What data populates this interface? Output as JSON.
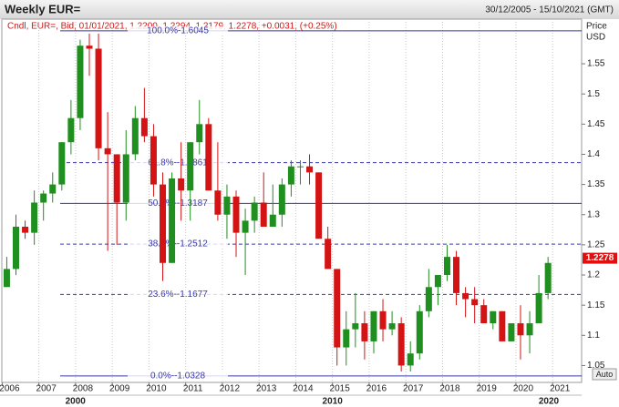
{
  "chart_data": {
    "type": "candlestick",
    "title": "Weekly EUR=",
    "date_range": "30/12/2005 - 15/10/2021 (GMT)",
    "legend_text": "Cndl, EUR=, Bid, 01/01/2021, 1.2200, 1.2294, 1.2179, 1.2278, +0.0031, (+0.25%)",
    "y_label": "Price",
    "y_unit": "USD",
    "auto_button": "Auto",
    "last_price": 1.2278,
    "up_color": "#1f8f1f",
    "down_color": "#d41414",
    "x": [
      2006.125,
      2006.375,
      2006.625,
      2006.875,
      2007.125,
      2007.375,
      2007.625,
      2007.875,
      2008.125,
      2008.375,
      2008.625,
      2008.875,
      2009.125,
      2009.375,
      2009.625,
      2009.875,
      2010.125,
      2010.375,
      2010.625,
      2010.875,
      2011.125,
      2011.375,
      2011.625,
      2011.875,
      2012.125,
      2012.375,
      2012.625,
      2012.875,
      2013.125,
      2013.375,
      2013.625,
      2013.875,
      2014.125,
      2014.375,
      2014.625,
      2014.875,
      2015.125,
      2015.375,
      2015.625,
      2015.875,
      2016.125,
      2016.375,
      2016.625,
      2016.875,
      2017.125,
      2017.375,
      2017.625,
      2017.875,
      2018.125,
      2018.375,
      2018.625,
      2018.875,
      2019.125,
      2019.375,
      2019.625,
      2019.875,
      2020.125,
      2020.375,
      2020.625,
      2020.875
    ],
    "open": [
      1.18,
      1.21,
      1.28,
      1.27,
      1.32,
      1.335,
      1.35,
      1.42,
      1.46,
      1.58,
      1.575,
      1.41,
      1.4,
      1.32,
      1.4,
      1.46,
      1.43,
      1.35,
      1.22,
      1.36,
      1.34,
      1.42,
      1.45,
      1.34,
      1.3,
      1.33,
      1.27,
      1.29,
      1.32,
      1.28,
      1.3,
      1.35,
      1.38,
      1.38,
      1.37,
      1.26,
      1.21,
      1.08,
      1.11,
      1.12,
      1.09,
      1.14,
      1.11,
      1.12,
      1.05,
      1.07,
      1.14,
      1.18,
      1.2,
      1.23,
      1.17,
      1.16,
      1.15,
      1.12,
      1.14,
      1.09,
      1.12,
      1.1,
      1.12,
      1.17
    ],
    "high": [
      1.23,
      1.3,
      1.29,
      1.34,
      1.34,
      1.37,
      1.42,
      1.49,
      1.59,
      1.6,
      1.6,
      1.47,
      1.4,
      1.44,
      1.48,
      1.51,
      1.45,
      1.37,
      1.37,
      1.42,
      1.42,
      1.49,
      1.46,
      1.42,
      1.35,
      1.34,
      1.31,
      1.33,
      1.37,
      1.35,
      1.36,
      1.39,
      1.39,
      1.4,
      1.37,
      1.28,
      1.21,
      1.14,
      1.17,
      1.14,
      1.14,
      1.16,
      1.14,
      1.13,
      1.09,
      1.15,
      1.21,
      1.2,
      1.25,
      1.24,
      1.18,
      1.18,
      1.16,
      1.14,
      1.14,
      1.12,
      1.15,
      1.14,
      1.2,
      1.23
    ],
    "low": [
      1.18,
      1.2,
      1.26,
      1.25,
      1.29,
      1.32,
      1.34,
      1.4,
      1.44,
      1.53,
      1.39,
      1.24,
      1.25,
      1.29,
      1.39,
      1.42,
      1.33,
      1.19,
      1.22,
      1.29,
      1.29,
      1.4,
      1.34,
      1.29,
      1.26,
      1.23,
      1.2,
      1.27,
      1.28,
      1.28,
      1.28,
      1.33,
      1.35,
      1.35,
      1.26,
      1.21,
      1.05,
      1.05,
      1.08,
      1.06,
      1.07,
      1.09,
      1.1,
      1.04,
      1.04,
      1.06,
      1.13,
      1.15,
      1.19,
      1.15,
      1.13,
      1.12,
      1.12,
      1.11,
      1.09,
      1.09,
      1.06,
      1.07,
      1.12,
      1.16
    ],
    "close": [
      1.21,
      1.28,
      1.27,
      1.32,
      1.335,
      1.35,
      1.42,
      1.46,
      1.58,
      1.575,
      1.41,
      1.4,
      1.32,
      1.4,
      1.46,
      1.43,
      1.35,
      1.22,
      1.36,
      1.34,
      1.42,
      1.45,
      1.34,
      1.3,
      1.33,
      1.27,
      1.29,
      1.32,
      1.28,
      1.3,
      1.35,
      1.38,
      1.38,
      1.37,
      1.26,
      1.21,
      1.08,
      1.11,
      1.12,
      1.09,
      1.14,
      1.11,
      1.12,
      1.05,
      1.07,
      1.14,
      1.18,
      1.2,
      1.23,
      1.17,
      1.16,
      1.15,
      1.12,
      1.14,
      1.09,
      1.12,
      1.1,
      1.12,
      1.17,
      1.22
    ],
    "xlim": [
      2005.99,
      2021.79
    ],
    "xticks": [
      2006,
      2007,
      2008,
      2009,
      2010,
      2011,
      2012,
      2013,
      2014,
      2015,
      2016,
      2017,
      2018,
      2019,
      2020,
      2021
    ],
    "decade_labels": [
      "2000",
      "2010",
      "2020"
    ],
    "ylim": [
      1.022,
      1.624
    ],
    "yticks": [
      1.05,
      1.1,
      1.15,
      1.2,
      1.25,
      1.3,
      1.35,
      1.4,
      1.45,
      1.5,
      1.55
    ],
    "grid": "x",
    "fib_color": "#3a3aa8",
    "fib_levels": [
      {
        "label": "100.0%-1.6045",
        "value": 1.6045,
        "dashed": false
      },
      {
        "label": "61.8%--1.3861",
        "value": 1.3861,
        "dashed": true
      },
      {
        "label": "50.0%--1.3187",
        "value": 1.3187,
        "dashed": false
      },
      {
        "label": "38.2%--1.2512",
        "value": 1.2512,
        "dashed": true
      },
      {
        "label": "23.6%--1.1677",
        "value": 1.1677,
        "dashed": true
      },
      {
        "label": "0.0%--1.0328",
        "value": 1.0328,
        "dashed": false
      }
    ]
  }
}
